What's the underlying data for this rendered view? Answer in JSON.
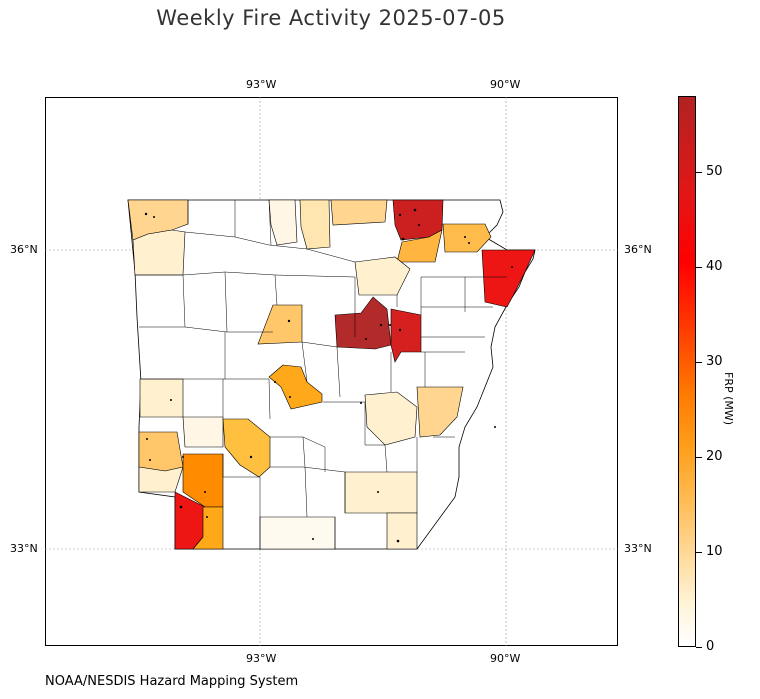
{
  "title": "Weekly Fire Activity 2025-07-05",
  "source": "NOAA/NESDIS Hazard Mapping System",
  "longitude_ticks": {
    "top": [
      "93°W",
      "90°W"
    ],
    "bottom": [
      "93°W",
      "90°W"
    ]
  },
  "latitude_ticks": {
    "left": [
      "36°N",
      "33°N"
    ],
    "right": [
      "36°N",
      "33°N"
    ]
  },
  "colorbar": {
    "title": "FRP (MW)",
    "ticks": [
      "0",
      "10",
      "20",
      "30",
      "40",
      "50"
    ],
    "range": [
      0,
      58
    ],
    "colors": [
      "#ffffff",
      "#ffe0a0",
      "#ffb347",
      "#ff8c00",
      "#ff0000",
      "#b22222"
    ]
  },
  "map": {
    "region": "Arkansas counties",
    "lon_range": [
      -95.6,
      -88.6
    ],
    "lat_range": [
      31.9,
      37.4
    ],
    "graticule": {
      "lons": [
        -93,
        -90
      ],
      "lats": [
        33,
        36
      ]
    }
  }
}
